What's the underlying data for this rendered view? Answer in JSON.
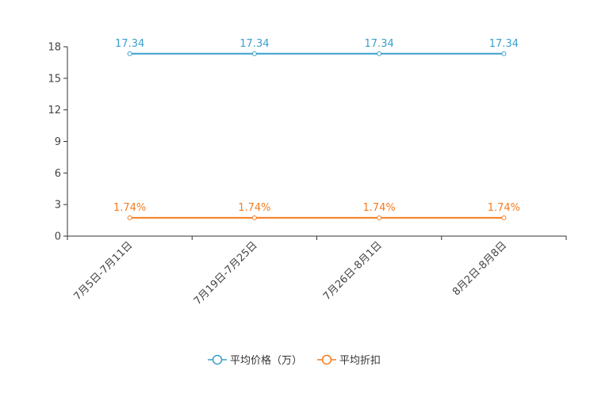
{
  "chart_data": {
    "type": "line",
    "title": "",
    "xlabel": "",
    "ylabel": "",
    "categories": [
      "7月5日-7月11日",
      "7月19日-7月25日",
      "7月26日-8月1日",
      "8月2日-8月8日"
    ],
    "ylim": [
      0,
      18
    ],
    "yticks": [
      0,
      3,
      6,
      9,
      12,
      15,
      18
    ],
    "ytick_labels": [
      "0",
      "3",
      "6",
      "9",
      "12",
      "15",
      "18"
    ],
    "grid": false,
    "legend_position": "bottom-center",
    "series": [
      {
        "name": "平均价格（万）",
        "values": [
          17.34,
          17.34,
          17.34,
          17.34
        ],
        "labels": [
          "17.34",
          "17.34",
          "17.34",
          "17.34"
        ],
        "color": "#3a9fcc"
      },
      {
        "name": "平均折扣",
        "values": [
          1.74,
          1.74,
          1.74,
          1.74
        ],
        "labels": [
          "1.74%",
          "1.74%",
          "1.74%",
          "1.74%"
        ],
        "color": "#f47c20"
      }
    ]
  }
}
